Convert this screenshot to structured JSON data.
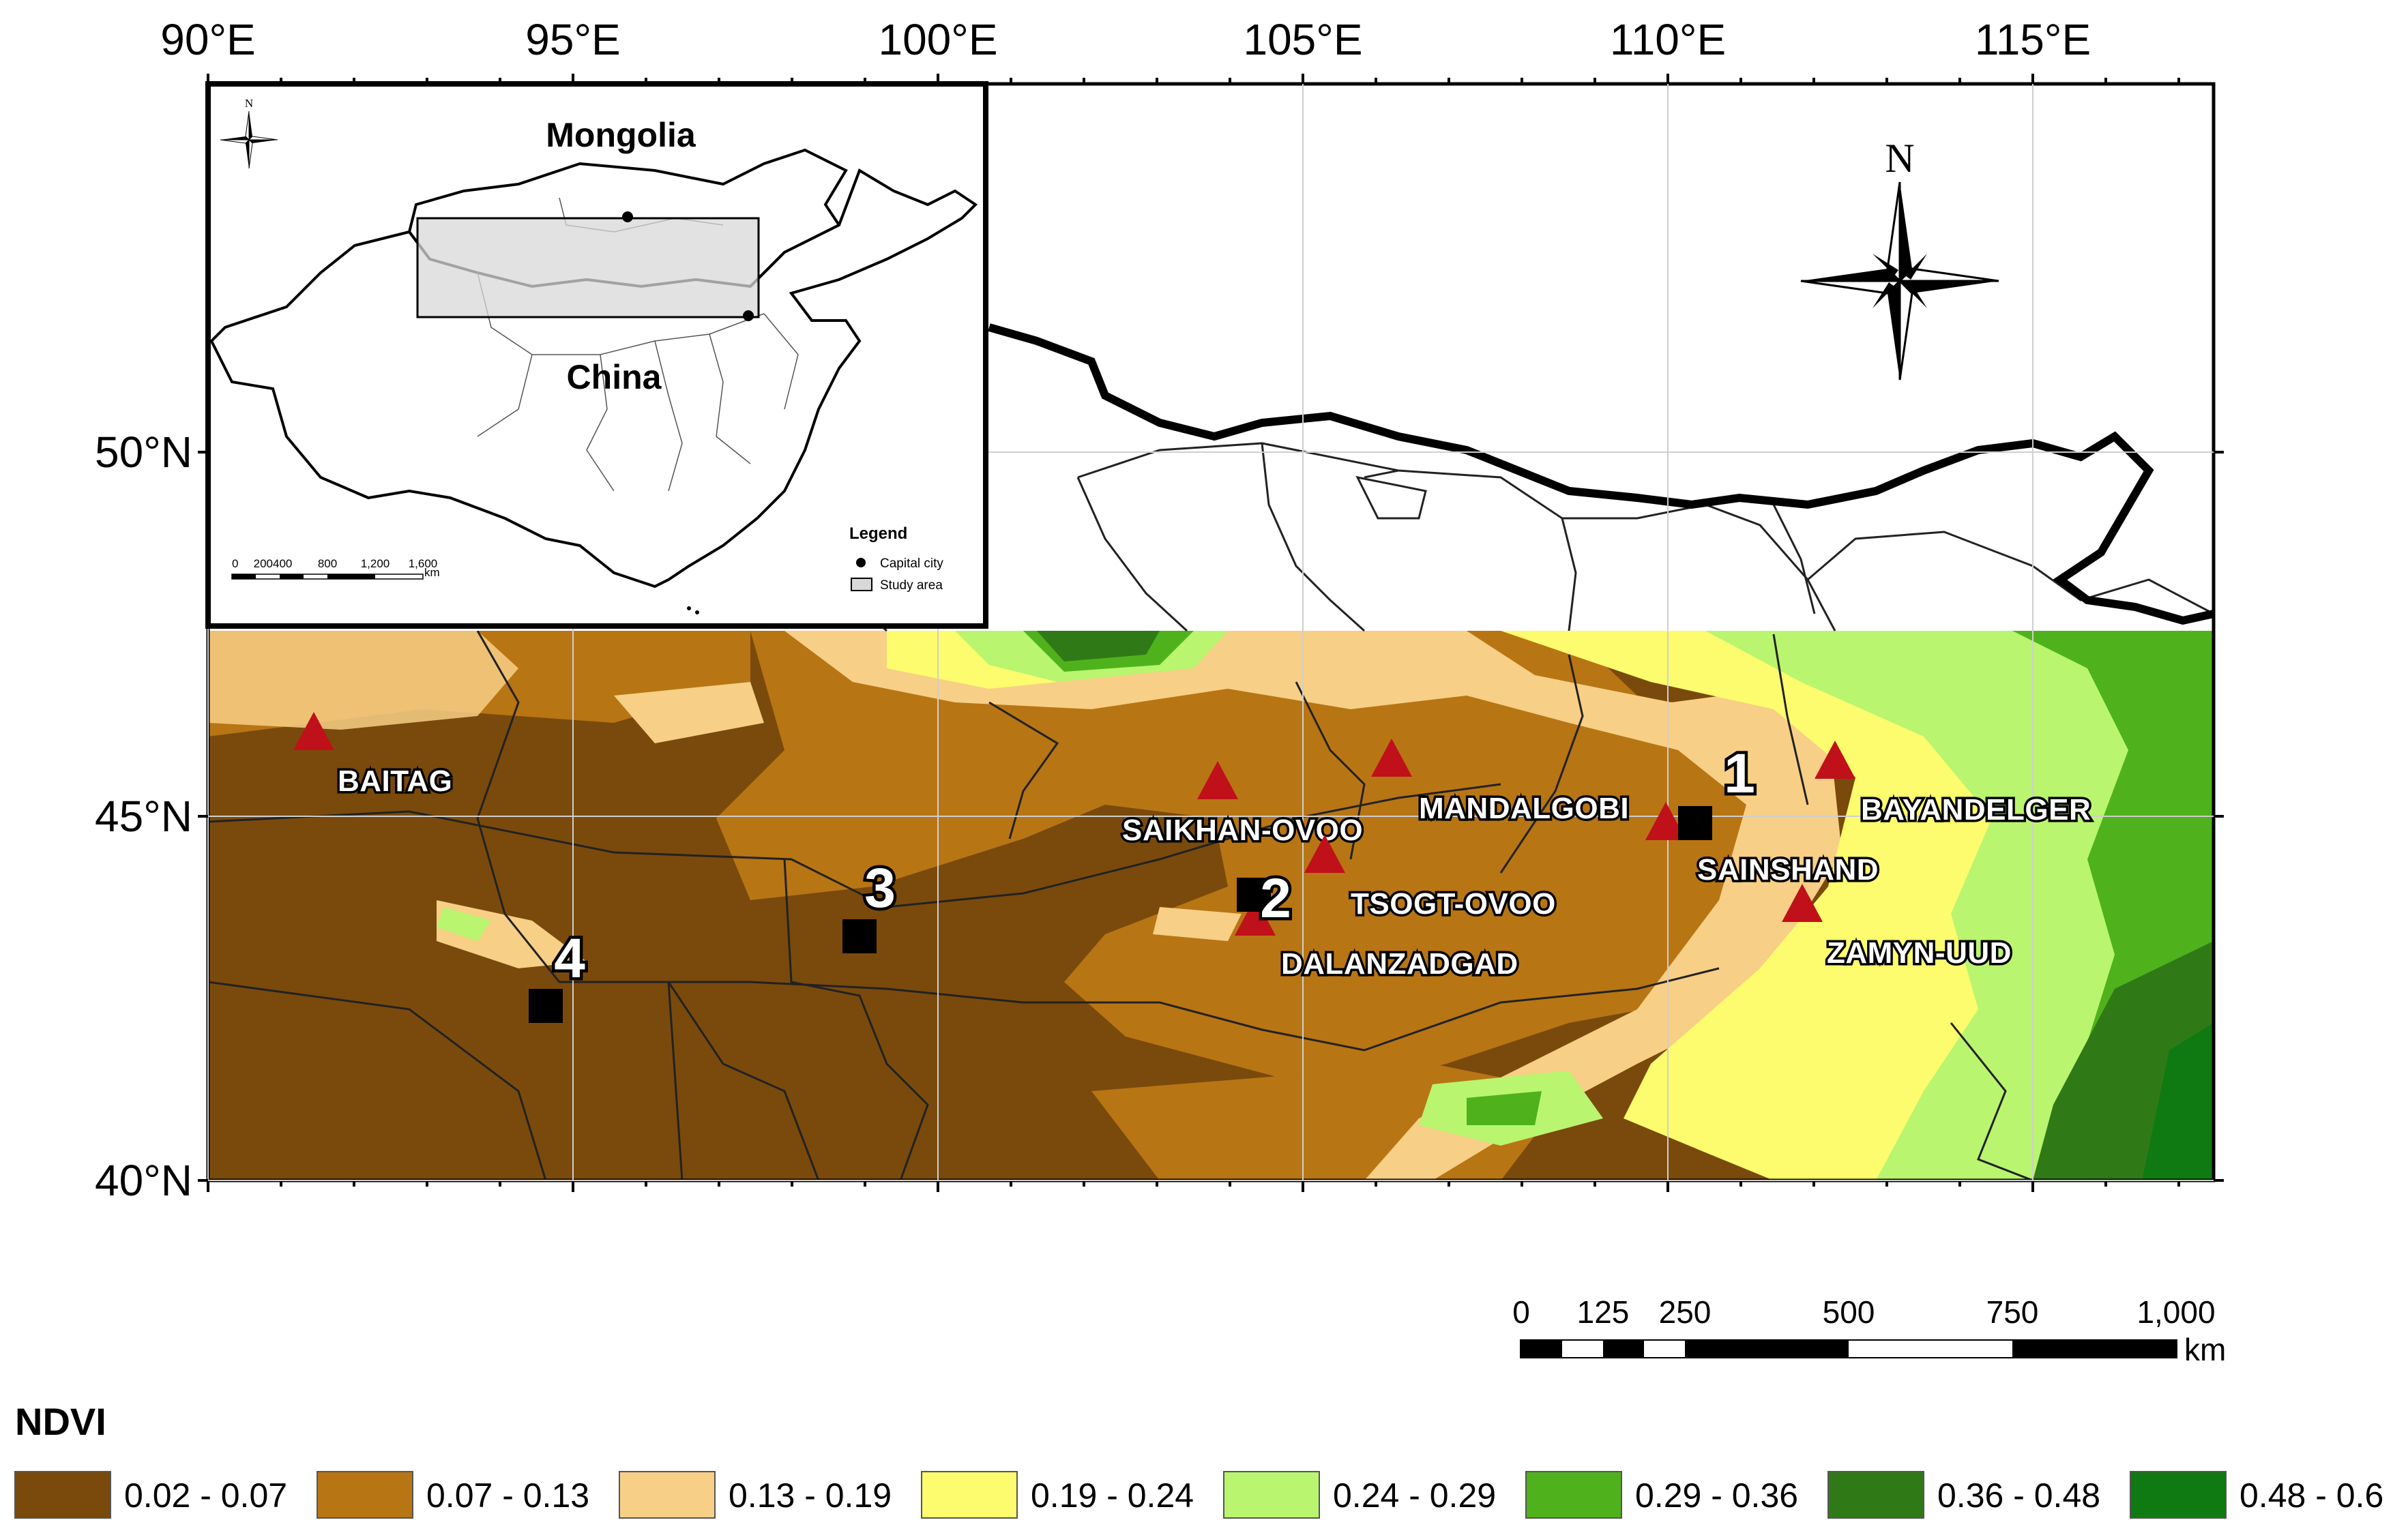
{
  "map": {
    "lon_labels": [
      "90°E",
      "95°E",
      "100°E",
      "105°E",
      "110°E",
      "115°E"
    ],
    "lat_labels": [
      "50°N",
      "45°N",
      "40°N"
    ],
    "north_label": "N",
    "sites": [
      {
        "name": "BAITAG"
      },
      {
        "name": "SAIKHAN-OVOO"
      },
      {
        "name": "MANDALGOBI"
      },
      {
        "name": "TSOGT-OVOO"
      },
      {
        "name": "DALANZADGAD"
      },
      {
        "name": "SAINSHAND"
      },
      {
        "name": "BAYANDELGER"
      },
      {
        "name": "ZAMYN-UUD"
      }
    ],
    "study_points": [
      "1",
      "2",
      "3",
      "4"
    ]
  },
  "inset": {
    "north_label": "N",
    "country_top": "Mongolia",
    "country_bottom": "China",
    "scale_labels": [
      "0",
      "200400",
      "800",
      "1,200",
      "1,600"
    ],
    "scale_unit": "km",
    "legend_title": "Legend",
    "legend_items": [
      "Capital city",
      "Study area"
    ]
  },
  "scalebar": {
    "labels": [
      "0",
      "125",
      "250",
      "500",
      "750",
      "1,000"
    ],
    "unit": "km"
  },
  "legend": {
    "title": "NDVI",
    "classes": [
      {
        "label": "0.02 - 0.07",
        "color": "#7a4a0c"
      },
      {
        "label": "0.07 - 0.13",
        "color": "#b87514"
      },
      {
        "label": "0.13 - 0.19",
        "color": "#f7cf86"
      },
      {
        "label": "0.19 - 0.24",
        "color": "#fcfc6e"
      },
      {
        "label": "0.24 - 0.29",
        "color": "#b9f56f"
      },
      {
        "label": "0.29 - 0.36",
        "color": "#4fb21c"
      },
      {
        "label": "0.36 - 0.48",
        "color": "#2f7a17"
      },
      {
        "label": "0.48 - 0.6",
        "color": "#0f7a12"
      }
    ]
  },
  "colors": {
    "site_marker": "#c0101a",
    "study_point": "#000000",
    "study_area_fill": "#d8d8d8"
  }
}
